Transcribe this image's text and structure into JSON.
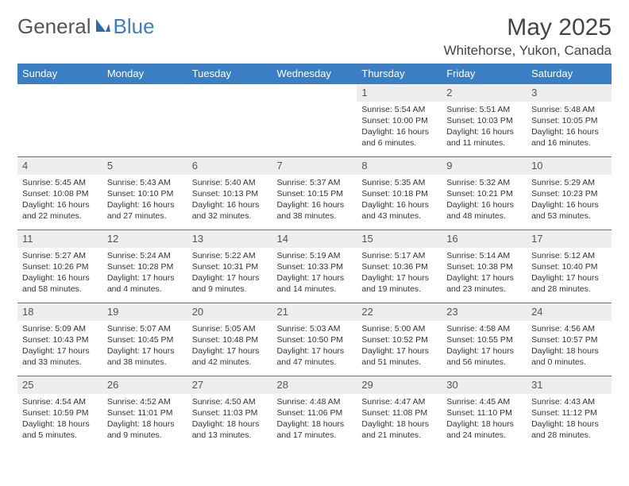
{
  "brand": {
    "part1": "General",
    "part2": "Blue"
  },
  "header": {
    "month_title": "May 2025",
    "location": "Whitehorse, Yukon, Canada"
  },
  "colors": {
    "header_bg": "#3a7fc4",
    "header_text": "#ffffff",
    "daynum_bg": "#eceded",
    "row_border": "#3a7fc4",
    "body_text": "#333333"
  },
  "weekdays": [
    "Sunday",
    "Monday",
    "Tuesday",
    "Wednesday",
    "Thursday",
    "Friday",
    "Saturday"
  ],
  "weeks": [
    [
      {
        "empty": true
      },
      {
        "empty": true
      },
      {
        "empty": true
      },
      {
        "empty": true
      },
      {
        "day": "1",
        "sunrise": "Sunrise: 5:54 AM",
        "sunset": "Sunset: 10:00 PM",
        "daylight": "Daylight: 16 hours and 6 minutes."
      },
      {
        "day": "2",
        "sunrise": "Sunrise: 5:51 AM",
        "sunset": "Sunset: 10:03 PM",
        "daylight": "Daylight: 16 hours and 11 minutes."
      },
      {
        "day": "3",
        "sunrise": "Sunrise: 5:48 AM",
        "sunset": "Sunset: 10:05 PM",
        "daylight": "Daylight: 16 hours and 16 minutes."
      }
    ],
    [
      {
        "day": "4",
        "sunrise": "Sunrise: 5:45 AM",
        "sunset": "Sunset: 10:08 PM",
        "daylight": "Daylight: 16 hours and 22 minutes."
      },
      {
        "day": "5",
        "sunrise": "Sunrise: 5:43 AM",
        "sunset": "Sunset: 10:10 PM",
        "daylight": "Daylight: 16 hours and 27 minutes."
      },
      {
        "day": "6",
        "sunrise": "Sunrise: 5:40 AM",
        "sunset": "Sunset: 10:13 PM",
        "daylight": "Daylight: 16 hours and 32 minutes."
      },
      {
        "day": "7",
        "sunrise": "Sunrise: 5:37 AM",
        "sunset": "Sunset: 10:15 PM",
        "daylight": "Daylight: 16 hours and 38 minutes."
      },
      {
        "day": "8",
        "sunrise": "Sunrise: 5:35 AM",
        "sunset": "Sunset: 10:18 PM",
        "daylight": "Daylight: 16 hours and 43 minutes."
      },
      {
        "day": "9",
        "sunrise": "Sunrise: 5:32 AM",
        "sunset": "Sunset: 10:21 PM",
        "daylight": "Daylight: 16 hours and 48 minutes."
      },
      {
        "day": "10",
        "sunrise": "Sunrise: 5:29 AM",
        "sunset": "Sunset: 10:23 PM",
        "daylight": "Daylight: 16 hours and 53 minutes."
      }
    ],
    [
      {
        "day": "11",
        "sunrise": "Sunrise: 5:27 AM",
        "sunset": "Sunset: 10:26 PM",
        "daylight": "Daylight: 16 hours and 58 minutes."
      },
      {
        "day": "12",
        "sunrise": "Sunrise: 5:24 AM",
        "sunset": "Sunset: 10:28 PM",
        "daylight": "Daylight: 17 hours and 4 minutes."
      },
      {
        "day": "13",
        "sunrise": "Sunrise: 5:22 AM",
        "sunset": "Sunset: 10:31 PM",
        "daylight": "Daylight: 17 hours and 9 minutes."
      },
      {
        "day": "14",
        "sunrise": "Sunrise: 5:19 AM",
        "sunset": "Sunset: 10:33 PM",
        "daylight": "Daylight: 17 hours and 14 minutes."
      },
      {
        "day": "15",
        "sunrise": "Sunrise: 5:17 AM",
        "sunset": "Sunset: 10:36 PM",
        "daylight": "Daylight: 17 hours and 19 minutes."
      },
      {
        "day": "16",
        "sunrise": "Sunrise: 5:14 AM",
        "sunset": "Sunset: 10:38 PM",
        "daylight": "Daylight: 17 hours and 23 minutes."
      },
      {
        "day": "17",
        "sunrise": "Sunrise: 5:12 AM",
        "sunset": "Sunset: 10:40 PM",
        "daylight": "Daylight: 17 hours and 28 minutes."
      }
    ],
    [
      {
        "day": "18",
        "sunrise": "Sunrise: 5:09 AM",
        "sunset": "Sunset: 10:43 PM",
        "daylight": "Daylight: 17 hours and 33 minutes."
      },
      {
        "day": "19",
        "sunrise": "Sunrise: 5:07 AM",
        "sunset": "Sunset: 10:45 PM",
        "daylight": "Daylight: 17 hours and 38 minutes."
      },
      {
        "day": "20",
        "sunrise": "Sunrise: 5:05 AM",
        "sunset": "Sunset: 10:48 PM",
        "daylight": "Daylight: 17 hours and 42 minutes."
      },
      {
        "day": "21",
        "sunrise": "Sunrise: 5:03 AM",
        "sunset": "Sunset: 10:50 PM",
        "daylight": "Daylight: 17 hours and 47 minutes."
      },
      {
        "day": "22",
        "sunrise": "Sunrise: 5:00 AM",
        "sunset": "Sunset: 10:52 PM",
        "daylight": "Daylight: 17 hours and 51 minutes."
      },
      {
        "day": "23",
        "sunrise": "Sunrise: 4:58 AM",
        "sunset": "Sunset: 10:55 PM",
        "daylight": "Daylight: 17 hours and 56 minutes."
      },
      {
        "day": "24",
        "sunrise": "Sunrise: 4:56 AM",
        "sunset": "Sunset: 10:57 PM",
        "daylight": "Daylight: 18 hours and 0 minutes."
      }
    ],
    [
      {
        "day": "25",
        "sunrise": "Sunrise: 4:54 AM",
        "sunset": "Sunset: 10:59 PM",
        "daylight": "Daylight: 18 hours and 5 minutes."
      },
      {
        "day": "26",
        "sunrise": "Sunrise: 4:52 AM",
        "sunset": "Sunset: 11:01 PM",
        "daylight": "Daylight: 18 hours and 9 minutes."
      },
      {
        "day": "27",
        "sunrise": "Sunrise: 4:50 AM",
        "sunset": "Sunset: 11:03 PM",
        "daylight": "Daylight: 18 hours and 13 minutes."
      },
      {
        "day": "28",
        "sunrise": "Sunrise: 4:48 AM",
        "sunset": "Sunset: 11:06 PM",
        "daylight": "Daylight: 18 hours and 17 minutes."
      },
      {
        "day": "29",
        "sunrise": "Sunrise: 4:47 AM",
        "sunset": "Sunset: 11:08 PM",
        "daylight": "Daylight: 18 hours and 21 minutes."
      },
      {
        "day": "30",
        "sunrise": "Sunrise: 4:45 AM",
        "sunset": "Sunset: 11:10 PM",
        "daylight": "Daylight: 18 hours and 24 minutes."
      },
      {
        "day": "31",
        "sunrise": "Sunrise: 4:43 AM",
        "sunset": "Sunset: 11:12 PM",
        "daylight": "Daylight: 18 hours and 28 minutes."
      }
    ]
  ]
}
